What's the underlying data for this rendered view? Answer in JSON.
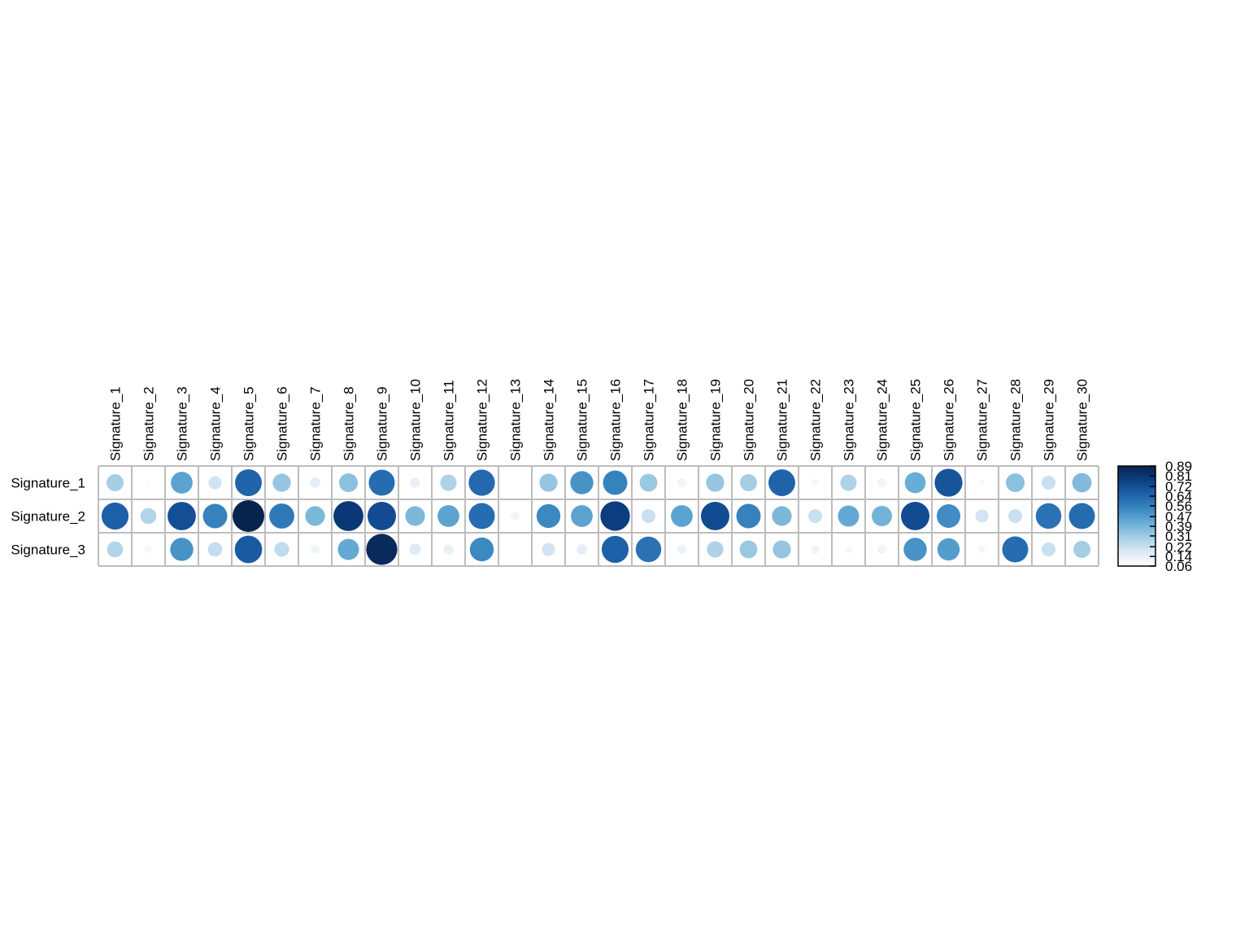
{
  "chart_data": {
    "type": "corrplot",
    "categories": [
      "Signature_1",
      "Signature_2",
      "Signature_3",
      "Signature_4",
      "Signature_5",
      "Signature_6",
      "Signature_7",
      "Signature_8",
      "Signature_9",
      "Signature_10",
      "Signature_11",
      "Signature_12",
      "Signature_13",
      "Signature_14",
      "Signature_15",
      "Signature_16",
      "Signature_17",
      "Signature_18",
      "Signature_19",
      "Signature_20",
      "Signature_21",
      "Signature_22",
      "Signature_23",
      "Signature_24",
      "Signature_25",
      "Signature_26",
      "Signature_27",
      "Signature_28",
      "Signature_29",
      "Signature_30"
    ],
    "rows": [
      "Signature_1",
      "Signature_2",
      "Signature_3"
    ],
    "values": [
      [
        0.3,
        0.08,
        0.45,
        0.2,
        0.65,
        0.33,
        0.15,
        0.35,
        0.62,
        0.14,
        0.28,
        0.63,
        0.06,
        0.33,
        0.5,
        0.55,
        0.32,
        0.12,
        0.33,
        0.3,
        0.65,
        0.1,
        0.28,
        0.12,
        0.42,
        0.7,
        0.09,
        0.35,
        0.22,
        0.37
      ],
      [
        0.66,
        0.27,
        0.72,
        0.55,
        0.89,
        0.58,
        0.38,
        0.8,
        0.73,
        0.38,
        0.45,
        0.62,
        0.12,
        0.53,
        0.45,
        0.78,
        0.22,
        0.45,
        0.73,
        0.55,
        0.38,
        0.22,
        0.43,
        0.4,
        0.73,
        0.52,
        0.2,
        0.22,
        0.6,
        0.62
      ],
      [
        0.27,
        0.1,
        0.5,
        0.23,
        0.68,
        0.24,
        0.12,
        0.43,
        0.86,
        0.17,
        0.14,
        0.53,
        0.06,
        0.2,
        0.15,
        0.66,
        0.6,
        0.13,
        0.28,
        0.32,
        0.33,
        0.12,
        0.1,
        0.12,
        0.5,
        0.47,
        0.1,
        0.62,
        0.22,
        0.3
      ]
    ],
    "clim": [
      0.06,
      0.89
    ],
    "cticks": [
      0.06,
      0.14,
      0.22,
      0.31,
      0.39,
      0.47,
      0.56,
      0.64,
      0.72,
      0.81,
      0.89
    ],
    "colors": [
      "#ffffff",
      "#dbe9f6",
      "#a6cee4",
      "#6aaed6",
      "#3a87c0",
      "#1f62aa",
      "#0b3f83",
      "#08244e"
    ],
    "grid_color": "#bdbdbd"
  }
}
